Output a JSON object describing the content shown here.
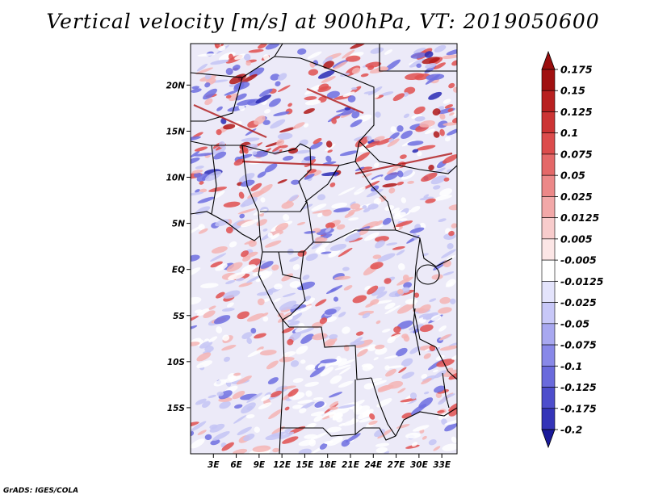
{
  "title": "Vertical velocity [m/s] at 900hPa, VT: 2019050600",
  "credit": "GrADS: IGES/COLA",
  "map": {
    "lon_range": [
      0,
      35
    ],
    "lat_range": [
      -20,
      24.5
    ],
    "lon_ticks": [
      {
        "value": 3,
        "label": "3E"
      },
      {
        "value": 6,
        "label": "6E"
      },
      {
        "value": 9,
        "label": "9E"
      },
      {
        "value": 12,
        "label": "12E"
      },
      {
        "value": 15,
        "label": "15E"
      },
      {
        "value": 18,
        "label": "18E"
      },
      {
        "value": 21,
        "label": "21E"
      },
      {
        "value": 24,
        "label": "24E"
      },
      {
        "value": 27,
        "label": "27E"
      },
      {
        "value": 30,
        "label": "30E"
      },
      {
        "value": 33,
        "label": "33E"
      }
    ],
    "lat_ticks": [
      {
        "value": 20,
        "label": "20N"
      },
      {
        "value": 15,
        "label": "15N"
      },
      {
        "value": 10,
        "label": "10N"
      },
      {
        "value": 5,
        "label": "5N"
      },
      {
        "value": 0,
        "label": "EQ"
      },
      {
        "value": -5,
        "label": "5S"
      },
      {
        "value": -10,
        "label": "10S"
      },
      {
        "value": -15,
        "label": "15S"
      }
    ],
    "field_colors": {
      "positive_strong": "#b01818",
      "positive": "#e05050",
      "positive_light": "#f4b4b4",
      "neutral": "#ffffff",
      "negative_light": "#c4c4f4",
      "negative": "#6e6ee0",
      "negative_strong": "#2a2ab4"
    }
  },
  "colorbar": {
    "levels": [
      {
        "label": "0.175",
        "color": "#a01010"
      },
      {
        "label": "0.15",
        "color": "#b82020"
      },
      {
        "label": "0.125",
        "color": "#cc3434"
      },
      {
        "label": "0.1",
        "color": "#dc4c4c"
      },
      {
        "label": "0.075",
        "color": "#e46868"
      },
      {
        "label": "0.05",
        "color": "#ec8888"
      },
      {
        "label": "0.025",
        "color": "#f2a8a8"
      },
      {
        "label": "0.0125",
        "color": "#f8cccc"
      },
      {
        "label": "0.005",
        "color": "#fce6e6"
      },
      {
        "label": "-0.005",
        "color": "#ffffff"
      },
      {
        "label": "-0.0125",
        "color": "#e4e4fc"
      },
      {
        "label": "-0.025",
        "color": "#c8c8f8"
      },
      {
        "label": "-0.05",
        "color": "#a8a8f0"
      },
      {
        "label": "-0.075",
        "color": "#8888e8"
      },
      {
        "label": "-0.1",
        "color": "#6a6adc"
      },
      {
        "label": "-0.125",
        "color": "#4e4ecc"
      },
      {
        "label": "-0.175",
        "color": "#3434b8"
      },
      {
        "label": "-0.2",
        "color": "#2020a0"
      }
    ],
    "top_color": "#9a0e0e",
    "bottom_color": "#1a1a9a"
  }
}
